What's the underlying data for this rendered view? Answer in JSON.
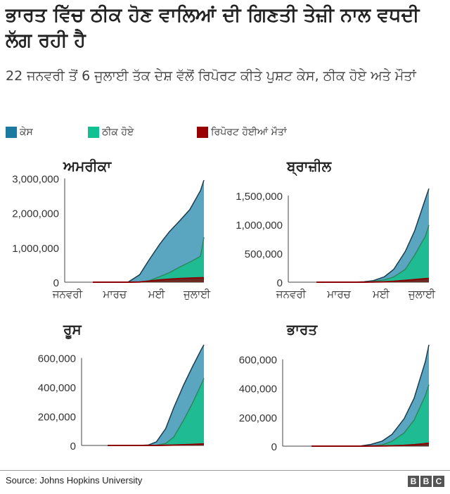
{
  "title": "ਭਾਰਤ ਵਿੱਚ ਠੀਕ ਹੋਣ ਵਾਲਿਆਂ ਦੀ ਗਿਣਤੀ ਤੇਜ਼ੀ ਨਾਲ ਵਧਦੀ ਲੱਗ ਰਹੀ ਹੈ",
  "subtitle": "22 ਜਨਵਰੀ ਤੋਂ 6 ਜੁਲਾਈ ਤੱਕ ਦੇਸ਼ ਵੱਲੋਂ ਰਿਪੋਰਟ ਕੀਤੇ ਪੁਸ਼ਟ ਕੇਸ, ਠੀਕ ਹੋਏ ਅਤੇ ਮੌਤਾਂ",
  "legend": [
    {
      "label": "ਕੇਸ",
      "color": "#1a7aa0"
    },
    {
      "label": "ਠੀਕ ਹੋਏ",
      "color": "#10c192"
    },
    {
      "label": "ਰਿਪੋਰਟ ਹੋਈਆਂ ਮੌਤਾਂ",
      "color": "#990000"
    }
  ],
  "footer": {
    "source": "Source: Johns Hopkins University",
    "logo": [
      "B",
      "B",
      "C"
    ]
  },
  "chart_data": [
    {
      "type": "area",
      "title": "ਅਮਰੀਕਾ",
      "x": [
        "2020-01-22",
        "2020-02-01",
        "2020-03-01",
        "2020-03-15",
        "2020-04-01",
        "2020-04-15",
        "2020-05-01",
        "2020-05-15",
        "2020-06-01",
        "2020-06-15",
        "2020-07-01",
        "2020-07-06"
      ],
      "xticks": [
        "ਜਨਵਰੀ",
        "ਮਾਰਚ",
        "ਮਈ",
        "ਜੁਲਾਈ"
      ],
      "yticks": [
        "0",
        "1,000,000",
        "2,000,000",
        "3,000,000"
      ],
      "ylim": [
        0,
        3000000
      ],
      "series": [
        {
          "name": "ਕੇਸ",
          "values": [
            0,
            8,
            75,
            3500,
            215000,
            640000,
            1100000,
            1450000,
            1800000,
            2100000,
            2650000,
            2950000
          ]
        },
        {
          "name": "ਠੀਕ ਹੋਏ",
          "values": [
            0,
            0,
            7,
            100,
            8000,
            40000,
            160000,
            270000,
            450000,
            580000,
            750000,
            1300000
          ]
        },
        {
          "name": "ਰਿਪੋਰਟ ਹੋਈਆਂ ਮੌਤਾਂ",
          "values": [
            0,
            0,
            1,
            60,
            5000,
            30000,
            65000,
            88000,
            105000,
            117000,
            128000,
            131000
          ]
        }
      ]
    },
    {
      "type": "area",
      "title": "ਬ੍ਰਾਜ਼ੀਲ",
      "x": [
        "2020-01-22",
        "2020-02-01",
        "2020-03-01",
        "2020-03-15",
        "2020-04-01",
        "2020-04-15",
        "2020-05-01",
        "2020-05-15",
        "2020-06-01",
        "2020-06-15",
        "2020-07-01",
        "2020-07-06"
      ],
      "xticks": [
        "ਜਨਵਰੀ",
        "ਮਾਰਚ",
        "ਮਈ",
        "ਜੁਲਾਈ"
      ],
      "yticks": [
        "0",
        "500,000",
        "1,000,000",
        "1,500,000"
      ],
      "ylim": [
        0,
        1600000
      ],
      "series": [
        {
          "name": "ਕੇਸ",
          "values": [
            0,
            0,
            2,
            200,
            6800,
            28000,
            92000,
            220000,
            530000,
            890000,
            1450000,
            1620000
          ]
        },
        {
          "name": "ਠੀਕ ਹੋਏ",
          "values": [
            0,
            0,
            0,
            2,
            100,
            14000,
            40000,
            90000,
            220000,
            470000,
            800000,
            990000
          ]
        },
        {
          "name": "ਰਿਪੋਰਟ ਹੋਈਆਂ ਮੌਤਾਂ",
          "values": [
            0,
            0,
            0,
            0,
            240,
            1900,
            6300,
            15000,
            30000,
            45000,
            61000,
            65000
          ]
        }
      ]
    },
    {
      "type": "area",
      "title": "ਰੂਸ",
      "x": [
        "2020-01-22",
        "2020-02-01",
        "2020-03-01",
        "2020-03-15",
        "2020-04-01",
        "2020-04-15",
        "2020-05-01",
        "2020-05-15",
        "2020-06-01",
        "2020-06-15",
        "2020-07-01",
        "2020-07-06"
      ],
      "yticks": [
        "0",
        "200,000",
        "400,000",
        "600,000"
      ],
      "ylim": [
        0,
        700000
      ],
      "series": [
        {
          "name": "ਕੇਸ",
          "values": [
            0,
            0,
            2,
            60,
            2800,
            25000,
            115000,
            260000,
            415000,
            530000,
            655000,
            690000
          ]
        },
        {
          "name": "ਠੀਕ ਹੋਏ",
          "values": [
            0,
            0,
            0,
            5,
            190,
            1900,
            13000,
            58000,
            175000,
            280000,
            415000,
            460000
          ]
        },
        {
          "name": "ਰਿਪੋਰਟ ਹੋਈਆਂ ਮੌਤਾਂ",
          "values": [
            0,
            0,
            0,
            0,
            17,
            200,
            1100,
            2400,
            4800,
            6900,
            9500,
            10300
          ]
        }
      ]
    },
    {
      "type": "area",
      "title": "ਭਾਰਤ",
      "x": [
        "2020-01-22",
        "2020-02-01",
        "2020-03-01",
        "2020-03-15",
        "2020-04-01",
        "2020-04-15",
        "2020-05-01",
        "2020-05-15",
        "2020-06-01",
        "2020-06-15",
        "2020-07-01",
        "2020-07-06"
      ],
      "yticks": [
        "0",
        "200,000",
        "400,000",
        "600,000"
      ],
      "ylim": [
        0,
        700000
      ],
      "series": [
        {
          "name": "ਕੇਸ",
          "values": [
            0,
            0,
            3,
            110,
            1900,
            12000,
            35000,
            82000,
            190000,
            330000,
            585000,
            700000
          ]
        },
        {
          "name": "ਠੀਕ ਹੋਏ",
          "values": [
            0,
            0,
            3,
            13,
            150,
            1500,
            9000,
            34000,
            92000,
            180000,
            350000,
            425000
          ]
        },
        {
          "name": "ਰਿਪੋਰਟ ਹੋਈਆਂ ਮੌਤਾਂ",
          "values": [
            0,
            0,
            0,
            2,
            50,
            400,
            1150,
            2650,
            5400,
            9500,
            17400,
            20000
          ]
        }
      ]
    }
  ]
}
